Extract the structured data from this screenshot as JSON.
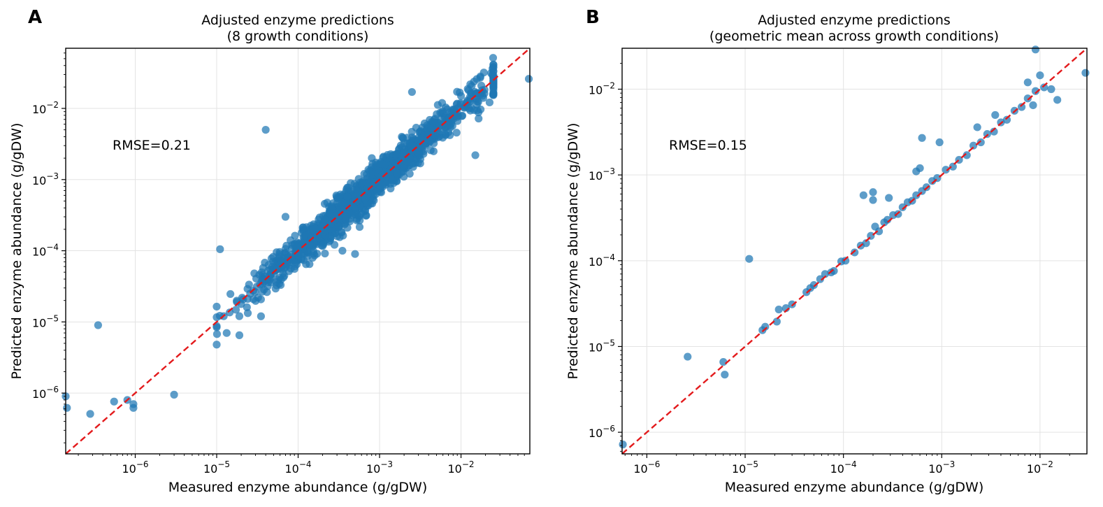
{
  "colors": {
    "points": "#1f77b4",
    "reference_line": "#e31a1c",
    "grid": "#e3e3e3"
  },
  "chart_data": [
    {
      "type": "scatter",
      "panel_label": "A",
      "title": [
        "Adjusted enzyme predictions",
        "(8 growth conditions)"
      ],
      "xlabel": "Measured enzyme abundance (g/gDW)",
      "ylabel": "Predicted enzyme abundance (g/gDW)",
      "xscale": "log",
      "yscale": "log",
      "xlim": [
        1.4e-07,
        0.07
      ],
      "ylim": [
        1.4e-07,
        0.07
      ],
      "x_ticks": [
        1e-06,
        1e-05,
        0.0001,
        0.001,
        0.01
      ],
      "x_tick_labels": [
        "10^-6",
        "10^-5",
        "10^-4",
        "10^-3",
        "10^-2"
      ],
      "y_ticks": [
        1e-06,
        1e-05,
        0.0001,
        0.001,
        0.01
      ],
      "y_tick_labels": [
        "10^-6",
        "10^-5",
        "10^-4",
        "10^-3",
        "10^-2"
      ],
      "annotation": "RMSE=0.21",
      "reference_line": "y = x",
      "grid": true,
      "points_explicit": [
        [
          1.4e-07,
          9e-07
        ],
        [
          1.45e-07,
          6.2e-07
        ],
        [
          3.5e-07,
          9e-06
        ],
        [
          2.8e-07,
          5.1e-07
        ],
        [
          5.5e-07,
          7.6e-07
        ],
        [
          8e-07,
          8e-07
        ],
        [
          9.5e-07,
          6.2e-07
        ],
        [
          9.5e-07,
          7e-07
        ],
        [
          3e-06,
          9.5e-07
        ],
        [
          1.1e-05,
          0.000105
        ],
        [
          1.9e-05,
          6.5e-06
        ],
        [
          3.5e-05,
          1.2e-05
        ],
        [
          4e-05,
          0.005
        ],
        [
          0.00035,
          0.0001
        ],
        [
          0.0005,
          9e-05
        ],
        [
          0.0025,
          0.017
        ],
        [
          0.068,
          0.026
        ],
        [
          0.015,
          0.0022
        ],
        [
          7e-05,
          0.0003
        ],
        [
          0.0008,
          0.0008
        ]
      ],
      "points_generated": {
        "count": 1300,
        "x_range": [
          1e-05,
          0.025
        ],
        "log10_scatter_sd": 0.13,
        "seed": 7
      }
    },
    {
      "type": "scatter",
      "panel_label": "B",
      "title": [
        "Adjusted enzyme predictions",
        "(geometric mean across growth conditions)"
      ],
      "xlabel": "Measured enzyme abundance (g/gDW)",
      "ylabel": "Predicted enzyme abundance (g/gDW)",
      "xscale": "log",
      "yscale": "log",
      "xlim": [
        5.6e-07,
        0.03
      ],
      "ylim": [
        5.6e-07,
        0.03
      ],
      "x_ticks": [
        1e-06,
        1e-05,
        0.0001,
        0.001,
        0.01
      ],
      "x_tick_labels": [
        "10^-6",
        "10^-5",
        "10^-4",
        "10^-3",
        "10^-2"
      ],
      "y_ticks": [
        1e-06,
        1e-05,
        0.0001,
        0.001,
        0.01
      ],
      "y_tick_labels": [
        "10^-6",
        "10^-5",
        "10^-4",
        "10^-3",
        "10^-2"
      ],
      "annotation": "RMSE=0.15",
      "reference_line": "y = x",
      "grid": true,
      "points_explicit": [
        [
          5.7e-07,
          7.2e-07
        ],
        [
          2.6e-06,
          7.6e-06
        ],
        [
          6e-06,
          6.6e-06
        ],
        [
          6.2e-06,
          4.7e-06
        ],
        [
          1.1e-05,
          0.000105
        ],
        [
          1.5e-05,
          1.55e-05
        ],
        [
          1.6e-05,
          1.7e-05
        ],
        [
          2.1e-05,
          1.95e-05
        ],
        [
          2.2e-05,
          2.7e-05
        ],
        [
          2.6e-05,
          2.8e-05
        ],
        [
          3e-05,
          3.1e-05
        ],
        [
          4.2e-05,
          4.3e-05
        ],
        [
          4.6e-05,
          4.8e-05
        ],
        [
          5e-05,
          5.2e-05
        ],
        [
          5.8e-05,
          6.1e-05
        ],
        [
          6.5e-05,
          7e-05
        ],
        [
          7.5e-05,
          7.3e-05
        ],
        [
          8e-05,
          7.6e-05
        ],
        [
          9.5e-05,
          9.8e-05
        ],
        [
          0.000105,
          0.0001
        ],
        [
          0.00013,
          0.000125
        ],
        [
          0.00015,
          0.00015
        ],
        [
          0.00017,
          0.00016
        ],
        [
          0.00019,
          0.000195
        ],
        [
          0.00021,
          0.00025
        ],
        [
          0.00023,
          0.00022
        ],
        [
          0.00026,
          0.00028
        ],
        [
          0.00028,
          0.0003
        ],
        [
          0.00032,
          0.00034
        ],
        [
          0.00036,
          0.00035
        ],
        [
          0.0004,
          0.00042
        ],
        [
          0.00045,
          0.00048
        ],
        [
          0.0005,
          0.0005
        ],
        [
          0.00055,
          0.00058
        ],
        [
          0.00063,
          0.00065
        ],
        [
          0.0007,
          0.00072
        ],
        [
          0.0008,
          0.00085
        ],
        [
          0.0009,
          0.00092
        ],
        [
          0.0011,
          0.00115
        ],
        [
          0.0013,
          0.00125
        ],
        [
          0.0015,
          0.0015
        ],
        [
          0.0018,
          0.0017
        ],
        [
          0.0021,
          0.0022
        ],
        [
          0.0025,
          0.0024
        ],
        [
          0.0029,
          0.003
        ],
        [
          0.0034,
          0.0032
        ],
        [
          0.004,
          0.0041
        ],
        [
          0.0046,
          0.0044
        ],
        [
          0.0055,
          0.0056
        ],
        [
          0.0065,
          0.0062
        ],
        [
          0.0075,
          0.0078
        ],
        [
          0.009,
          0.0095
        ],
        [
          0.011,
          0.0105
        ],
        [
          0.013,
          0.01
        ],
        [
          0.015,
          0.0075
        ],
        [
          0.0085,
          0.0065
        ],
        [
          0.0002,
          0.00063
        ],
        [
          0.00016,
          0.00058
        ],
        [
          0.0002,
          0.00051
        ],
        [
          0.00029,
          0.00054
        ],
        [
          0.00055,
          0.0011
        ],
        [
          0.0006,
          0.0012
        ],
        [
          0.00063,
          0.0027
        ],
        [
          0.00095,
          0.0024
        ],
        [
          0.0035,
          0.005
        ],
        [
          0.0023,
          0.0036
        ],
        [
          0.009,
          0.029
        ],
        [
          0.029,
          0.0155
        ],
        [
          0.01,
          0.0145
        ],
        [
          0.0075,
          0.012
        ]
      ]
    }
  ]
}
